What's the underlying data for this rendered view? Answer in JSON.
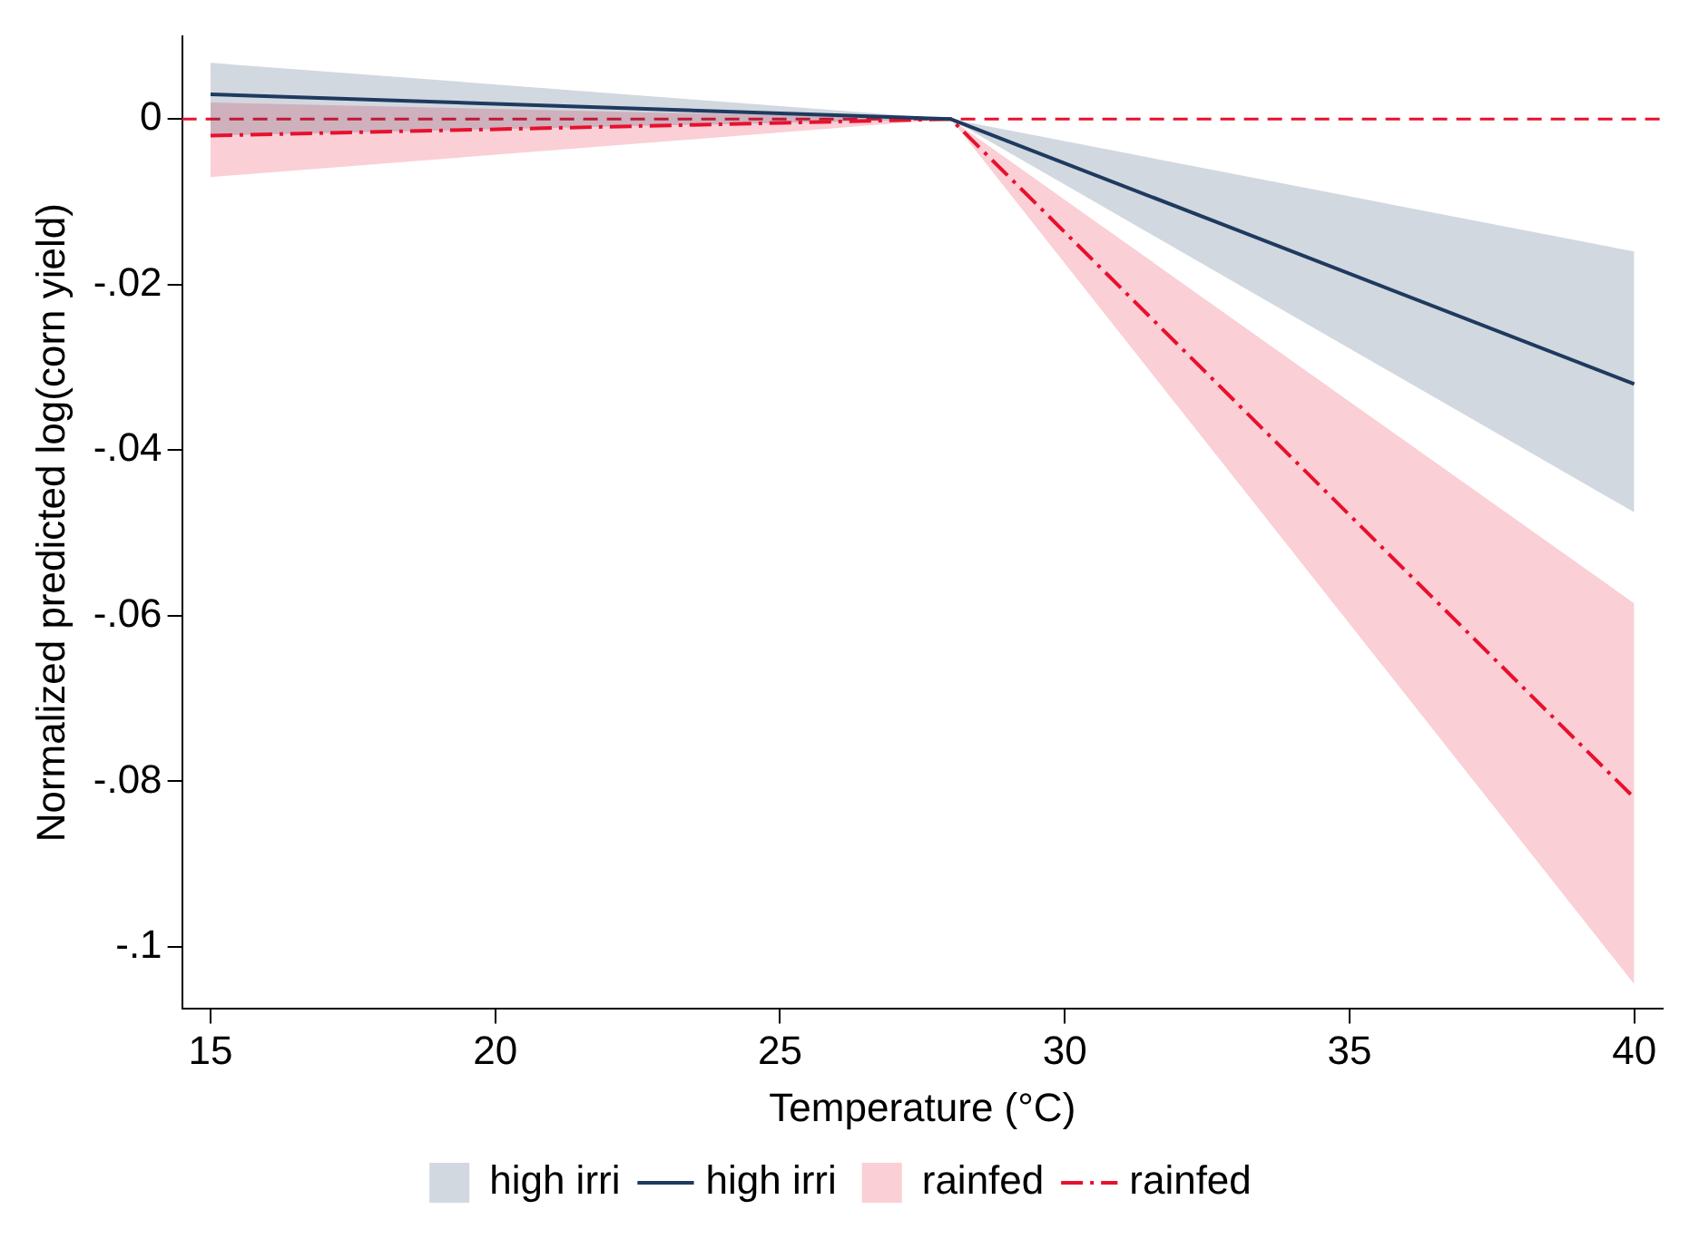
{
  "chart_data": {
    "type": "line",
    "xlabel": "Temperature (°C)",
    "ylabel": "Normalized predicted log(corn yield)",
    "x": [
      15,
      28,
      40
    ],
    "series": [
      {
        "name": "high irri",
        "type": "line",
        "color": "#1f3a5f",
        "values": [
          0.003,
          0,
          -0.032
        ],
        "lower": [
          -0.002,
          0,
          -0.0475
        ],
        "upper": [
          0.0068,
          0,
          -0.016
        ],
        "line_style": "solid"
      },
      {
        "name": "rainfed",
        "color": "#e8102e",
        "values": [
          -0.002,
          0,
          -0.082
        ],
        "lower": [
          -0.007,
          0,
          -0.1045
        ],
        "upper": [
          0.002,
          0,
          -0.0585
        ],
        "line_style": "dashdot"
      }
    ],
    "xlim": [
      14.5,
      40.5
    ],
    "xticks": [
      15,
      20,
      25,
      30,
      35,
      40
    ],
    "ylim": [
      -0.1075,
      0.01
    ],
    "yticks": [
      {
        "value": 0,
        "label": "0"
      },
      {
        "value": -0.02,
        "label": "-.02"
      },
      {
        "value": -0.04,
        "label": "-.04"
      },
      {
        "value": -0.06,
        "label": "-.06"
      },
      {
        "value": -0.08,
        "label": "-.08"
      },
      {
        "value": -0.1,
        "label": "-.1"
      }
    ],
    "ref_lines": [
      {
        "axis": "y",
        "value": 0,
        "color": "#e8102e",
        "line_style": "dashed"
      }
    ],
    "grid": false,
    "legend": "bottom",
    "marker": "none"
  }
}
